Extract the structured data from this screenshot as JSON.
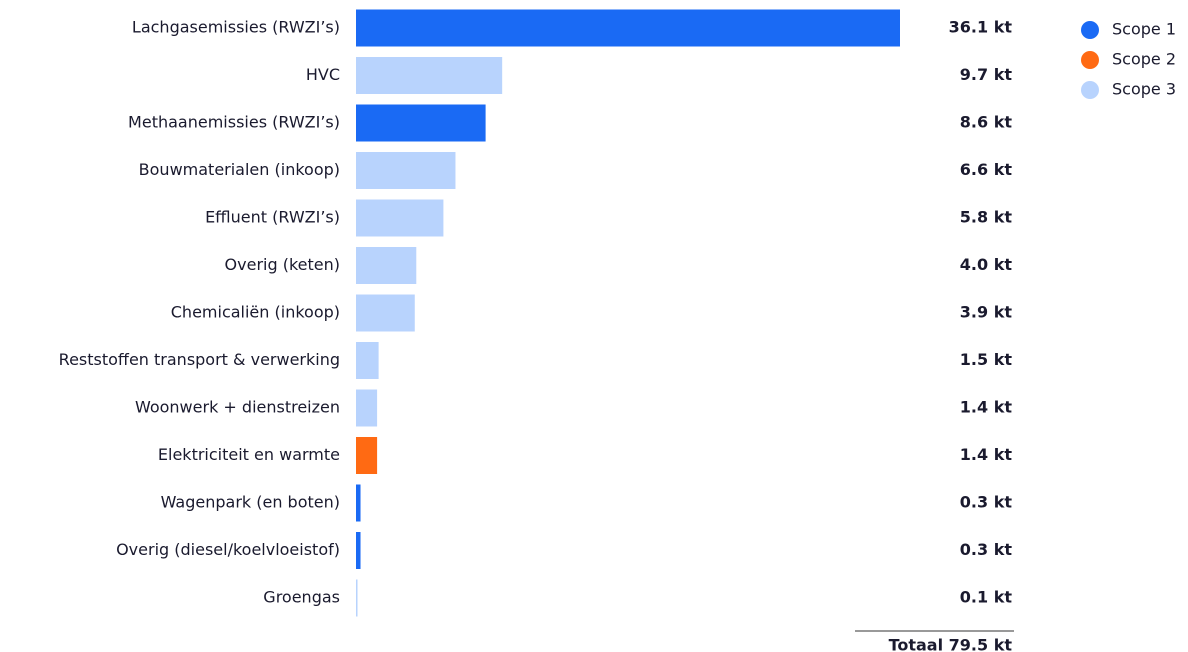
{
  "chart_data": {
    "type": "bar",
    "orientation": "horizontal",
    "categories": [
      "Lachgasemissies (RWZI’s)",
      "HVC",
      "Methaanemissies (RWZI’s)",
      "Bouwmaterialen (inkoop)",
      "Effluent (RWZI’s)",
      "Overig (keten)",
      "Chemicaliën (inkoop)",
      "Reststoffen transport & verwerking",
      "Woonwerk + dienstreizen",
      "Elektriciteit en warmte",
      "Wagenpark (en boten)",
      "Overig (diesel/koelvloeistof)",
      "Groengas"
    ],
    "values": [
      36.1,
      9.7,
      8.6,
      6.6,
      5.8,
      4.0,
      3.9,
      1.5,
      1.4,
      1.4,
      0.3,
      0.3,
      0.1
    ],
    "value_labels": [
      "36.1 kt",
      "9.7 kt",
      "8.6 kt",
      "6.6 kt",
      "5.8 kt",
      "4.0 kt",
      "3.9 kt",
      "1.5 kt",
      "1.4 kt",
      "1.4 kt",
      "0.3 kt",
      "0.3 kt",
      "0.1 kt"
    ],
    "colors": [
      "#1a6af4",
      "#b8d3fd",
      "#1a6af4",
      "#b8d3fd",
      "#b8d3fd",
      "#b8d3fd",
      "#b8d3fd",
      "#b8d3fd",
      "#b8d3fd",
      "#ff6a13",
      "#1a6af4",
      "#1a6af4",
      "#b8d3fd"
    ],
    "legend": [
      {
        "name": "Scope 1",
        "color": "#1a6af4"
      },
      {
        "name": "Scope 2",
        "color": "#ff6a13"
      },
      {
        "name": "Scope 3",
        "color": "#b8d3fd"
      }
    ],
    "total_label": "Totaal 79.5 kt"
  }
}
